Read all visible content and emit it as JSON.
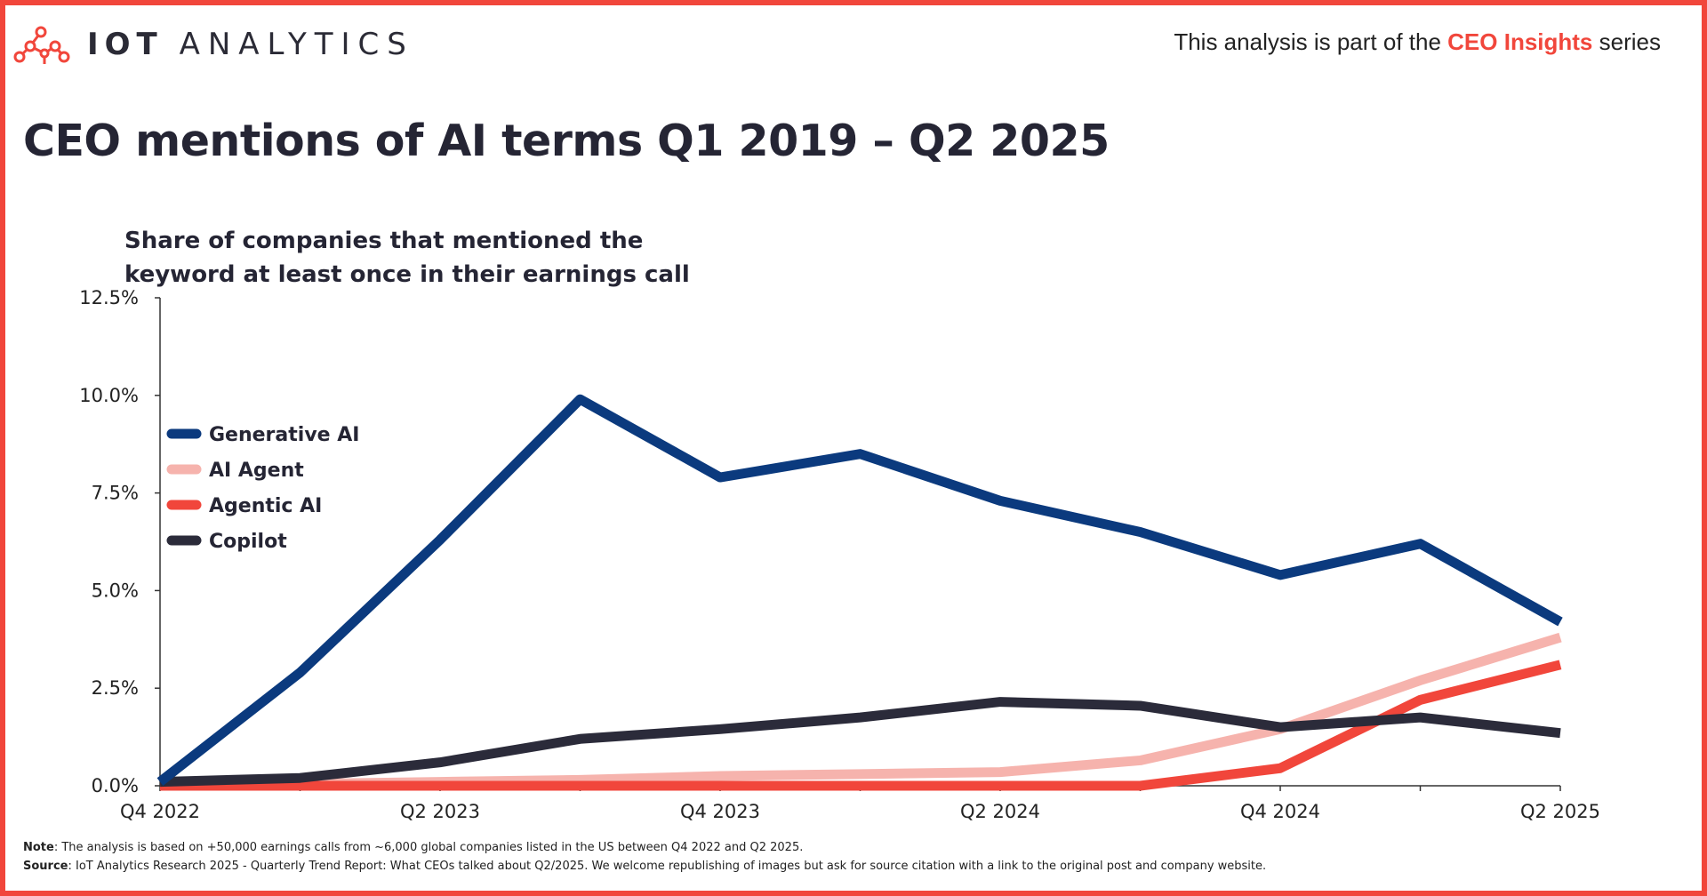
{
  "brand": {
    "logo_strong": "IOT",
    "logo_thin": "ANALYTICS",
    "accent_color": "#f1463b",
    "dark_color": "#252534"
  },
  "header": {
    "series_prefix": "This analysis is part of the",
    "series_name": "CEO Insights",
    "series_suffix": "series"
  },
  "title": "CEO mentions of AI terms Q1 2019 – Q2 2025",
  "footer": {
    "note_label": "Note",
    "note_text": ": The analysis is based on +50,000 earnings calls from ~6,000 global companies listed in the US between Q4 2022 and Q2 2025.",
    "source_label": "Source",
    "source_text": ": IoT Analytics Research 2025 - Quarterly Trend Report: What CEOs talked about Q2/2025. We welcome republishing of images but ask for source citation with a link to the original post and company website."
  },
  "chart_data": {
    "type": "line",
    "title": "CEO mentions of AI terms Q1 2019 – Q2 2025",
    "ylabel_lines": [
      "Share of companies that mentioned the",
      "keyword at least once in their earnings call"
    ],
    "xlabel": "",
    "x": [
      "Q4 2022",
      "Q1 2023",
      "Q2 2023",
      "Q3 2023",
      "Q4 2023",
      "Q1 2024",
      "Q2 2024",
      "Q3 2024",
      "Q4 2024",
      "Q1 2025",
      "Q2 2025"
    ],
    "x_tick_labels": [
      "Q4 2022",
      "Q2 2023",
      "Q4 2023",
      "Q2 2024",
      "Q4 2024",
      "Q2 2025"
    ],
    "ylim": [
      0,
      12.5
    ],
    "y_ticks": [
      0,
      2.5,
      5.0,
      7.5,
      10.0,
      12.5
    ],
    "y_tick_labels": [
      "0.0%",
      "2.5%",
      "5.0%",
      "7.5%",
      "10.0%",
      "12.5%"
    ],
    "grid": false,
    "legend_position": "upper-left",
    "series": [
      {
        "name": "Generative AI",
        "color": "#0b3a7e",
        "values": [
          0.1,
          2.9,
          6.3,
          9.9,
          7.9,
          8.5,
          7.3,
          6.5,
          5.4,
          6.2,
          4.2
        ]
      },
      {
        "name": "AI Agent",
        "color": "#f6b3ad",
        "values": [
          0.0,
          0.05,
          0.1,
          0.15,
          0.25,
          0.3,
          0.35,
          0.65,
          1.45,
          2.7,
          3.8
        ]
      },
      {
        "name": "Agentic AI",
        "color": "#f1463b",
        "values": [
          0.0,
          0.0,
          0.0,
          0.0,
          0.0,
          0.0,
          0.0,
          0.0,
          0.45,
          2.2,
          3.1
        ]
      },
      {
        "name": "Copilot",
        "color": "#2b2b3a",
        "values": [
          0.1,
          0.2,
          0.6,
          1.2,
          1.45,
          1.75,
          2.15,
          2.05,
          1.5,
          1.75,
          1.35
        ]
      }
    ]
  }
}
